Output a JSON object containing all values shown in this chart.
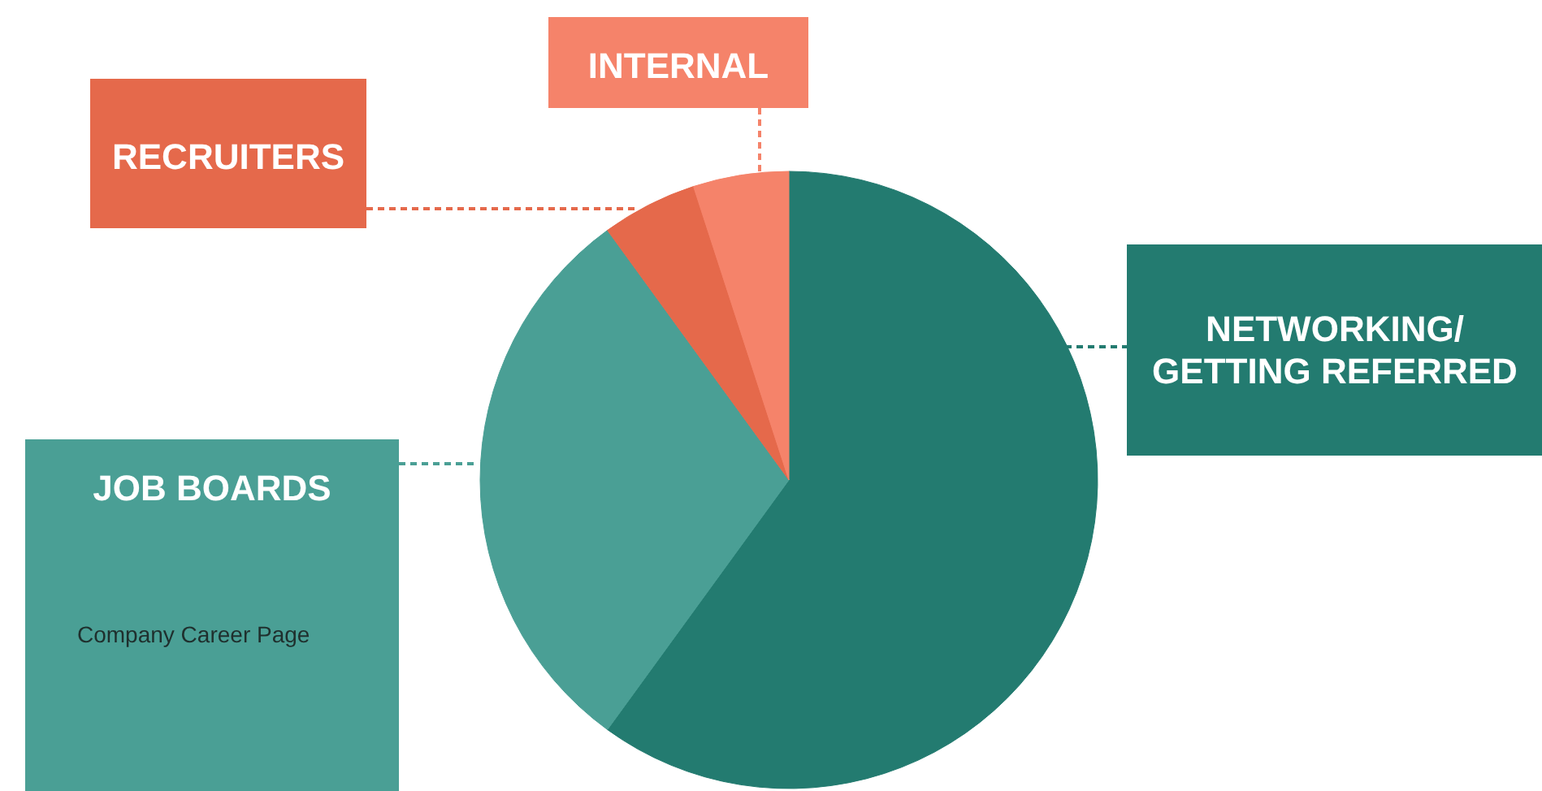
{
  "chart_data": {
    "type": "pie",
    "categories": [
      "NETWORKING/\nGETTING REFERRED",
      "JOB BOARDS",
      "RECRUITERS",
      "INTERNAL"
    ],
    "values": [
      60,
      30,
      5,
      5
    ],
    "colors": [
      "#237b70",
      "#4a9f95",
      "#e5694b",
      "#f5836a"
    ],
    "annotations": [
      "Company Career Page"
    ]
  }
}
